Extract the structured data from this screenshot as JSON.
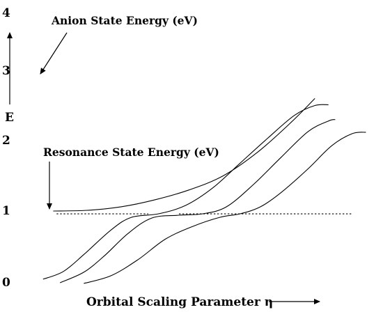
{
  "chart_data": {
    "type": "line",
    "title": "",
    "xlabel": "Orbital Scaling Parameter η",
    "ylabel": "E",
    "ylim": [
      0,
      4
    ],
    "yticks": [
      "0",
      "1",
      "2",
      "3",
      "4"
    ],
    "grid": false,
    "annotations": {
      "anion": "Anion State Energy (eV)",
      "resonance": "Resonance State Energy (eV)"
    },
    "series": [
      {
        "x": [
          0.05,
          0.15,
          0.25,
          0.35,
          0.45,
          0.55,
          0.65,
          0.75,
          0.82
        ],
        "values": [
          1.02,
          1.03,
          1.08,
          1.18,
          1.32,
          1.52,
          1.85,
          2.28,
          2.62
        ]
      },
      {
        "x": [
          0.02,
          0.08,
          0.14,
          0.22,
          0.28,
          0.36,
          0.44,
          0.52,
          0.6,
          0.68,
          0.76,
          0.82,
          0.86
        ],
        "values": [
          0.05,
          0.16,
          0.4,
          0.75,
          0.93,
          0.98,
          1.1,
          1.35,
          1.7,
          2.05,
          2.38,
          2.52,
          2.53
        ]
      },
      {
        "x": [
          0.07,
          0.14,
          0.2,
          0.27,
          0.34,
          0.42,
          0.49,
          0.56,
          0.64,
          0.72,
          0.8,
          0.86,
          0.88
        ],
        "values": [
          0.0,
          0.15,
          0.38,
          0.7,
          0.92,
          0.96,
          0.98,
          1.08,
          1.4,
          1.78,
          2.15,
          2.3,
          2.32
        ]
      },
      {
        "x": [
          0.14,
          0.22,
          0.3,
          0.38,
          0.46,
          0.54,
          0.6,
          0.66,
          0.72,
          0.8,
          0.87,
          0.93,
          0.97
        ],
        "values": [
          -0.01,
          0.1,
          0.33,
          0.62,
          0.8,
          0.93,
          0.98,
          1.08,
          1.28,
          1.62,
          1.95,
          2.12,
          2.14
        ]
      }
    ],
    "reference_lines": [
      {
        "y": 0.98,
        "x_start": 0.06,
        "x_end": 0.33
      },
      {
        "y": 0.98,
        "x_start": 0.42,
        "x_end": 0.93
      }
    ]
  }
}
